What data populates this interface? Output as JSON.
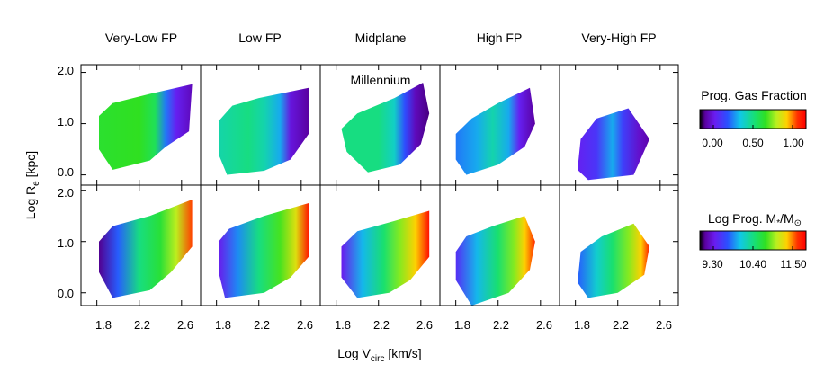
{
  "chart_data": {
    "type": "heatmap",
    "panel_titles": [
      "Very-Low FP",
      "Low FP",
      "Midplane",
      "High FP",
      "Very-High FP"
    ],
    "annotation": "Millennium",
    "xlabel_main": "Log V",
    "xlabel_sub": "circ",
    "xlabel_units": " [km/s]",
    "ylabel_main": "Log R",
    "ylabel_sub": "e",
    "ylabel_units": " [kpc]",
    "x_ticks": [
      1.8,
      2.2,
      2.6
    ],
    "x_tick_labels": [
      "1.8",
      "2.2",
      "2.6"
    ],
    "xlim": [
      1.65,
      2.78
    ],
    "row1_y_ticks": [
      0.0,
      1.0,
      2.0
    ],
    "row1_y_tick_labels": [
      "0.0",
      "1.0",
      "2.0"
    ],
    "row2_y_ticks": [
      0.0,
      1.0,
      2.0
    ],
    "row2_y_tick_labels": [
      "0.0",
      "1.0",
      "2.0"
    ],
    "ylim_row1": [
      -0.2,
      2.15
    ],
    "ylim_row2": [
      -0.25,
      2.1
    ],
    "colorbars": [
      {
        "title": "Prog. Gas Fraction",
        "tick_labels": [
          "0.00",
          "0.50",
          "1.00"
        ],
        "min": 0.0,
        "max": 1.0
      },
      {
        "title_main": "Log Prog. M",
        "title_sub": "*",
        "title_mid": "/M",
        "title_sun": "⊙",
        "tick_labels": [
          "9.30",
          "10.40",
          "11.50"
        ],
        "min": 9.3,
        "max": 11.5
      }
    ],
    "rows": [
      {
        "quantity": "Prog. Gas Fraction",
        "panels": [
          {
            "polygon": [
              [
                1.95,
                0.1
              ],
              [
                2.3,
                0.28
              ],
              [
                2.45,
                0.55
              ],
              [
                2.67,
                0.85
              ],
              [
                2.7,
                1.77
              ],
              [
                2.3,
                1.58
              ],
              [
                1.95,
                1.4
              ],
              [
                1.82,
                1.15
              ],
              [
                1.82,
                0.5
              ]
            ],
            "stops": [
              [
                1.8,
                0.6
              ],
              [
                2.2,
                0.62
              ],
              [
                2.35,
                0.55
              ],
              [
                2.45,
                0.3
              ],
              [
                2.55,
                0.15
              ],
              [
                2.7,
                0.08
              ]
            ]
          },
          {
            "polygon": [
              [
                1.9,
                0.0
              ],
              [
                2.25,
                0.08
              ],
              [
                2.5,
                0.3
              ],
              [
                2.67,
                0.8
              ],
              [
                2.67,
                1.7
              ],
              [
                2.2,
                1.5
              ],
              [
                1.95,
                1.35
              ],
              [
                1.82,
                1.05
              ],
              [
                1.82,
                0.4
              ]
            ],
            "stops": [
              [
                1.8,
                0.45
              ],
              [
                2.1,
                0.5
              ],
              [
                2.25,
                0.45
              ],
              [
                2.4,
                0.35
              ],
              [
                2.5,
                0.12
              ],
              [
                2.67,
                0.05
              ]
            ]
          },
          {
            "polygon": [
              [
                2.1,
                0.05
              ],
              [
                2.4,
                0.2
              ],
              [
                2.6,
                0.6
              ],
              [
                2.68,
                1.2
              ],
              [
                2.62,
                1.8
              ],
              [
                2.35,
                1.5
              ],
              [
                2.0,
                1.2
              ],
              [
                1.85,
                0.9
              ],
              [
                1.9,
                0.45
              ]
            ],
            "stops": [
              [
                1.85,
                0.5
              ],
              [
                2.2,
                0.5
              ],
              [
                2.35,
                0.42
              ],
              [
                2.45,
                0.25
              ],
              [
                2.55,
                0.08
              ],
              [
                2.68,
                0.04
              ]
            ]
          },
          {
            "polygon": [
              [
                1.9,
                0.0
              ],
              [
                2.2,
                0.2
              ],
              [
                2.45,
                0.55
              ],
              [
                2.55,
                1.0
              ],
              [
                2.5,
                1.7
              ],
              [
                2.2,
                1.4
              ],
              [
                1.95,
                1.1
              ],
              [
                1.8,
                0.8
              ],
              [
                1.8,
                0.3
              ]
            ],
            "stops": [
              [
                1.8,
                0.3
              ],
              [
                2.0,
                0.35
              ],
              [
                2.15,
                0.45
              ],
              [
                2.3,
                0.35
              ],
              [
                2.4,
                0.15
              ],
              [
                2.55,
                0.05
              ]
            ]
          },
          {
            "polygon": [
              [
                1.92,
                -0.1
              ],
              [
                2.35,
                0.0
              ],
              [
                2.5,
                0.7
              ],
              [
                2.3,
                1.3
              ],
              [
                2.0,
                1.1
              ],
              [
                1.85,
                0.7
              ],
              [
                1.82,
                0.1
              ]
            ],
            "stops": [
              [
                1.82,
                0.15
              ],
              [
                2.0,
                0.2
              ],
              [
                2.15,
                0.35
              ],
              [
                2.25,
                0.22
              ],
              [
                2.4,
                0.1
              ],
              [
                2.5,
                0.06
              ]
            ]
          }
        ]
      },
      {
        "quantity": "Log Prog. Stellar Mass",
        "panels": [
          {
            "polygon": [
              [
                1.95,
                -0.1
              ],
              [
                2.3,
                0.05
              ],
              [
                2.5,
                0.4
              ],
              [
                2.7,
                0.9
              ],
              [
                2.7,
                1.82
              ],
              [
                2.3,
                1.5
              ],
              [
                1.95,
                1.3
              ],
              [
                1.82,
                1.0
              ],
              [
                1.82,
                0.4
              ]
            ],
            "stops": [
              [
                1.82,
                9.4
              ],
              [
                2.0,
                9.9
              ],
              [
                2.2,
                10.4
              ],
              [
                2.4,
                10.6
              ],
              [
                2.55,
                10.9
              ],
              [
                2.7,
                11.3
              ]
            ]
          },
          {
            "polygon": [
              [
                1.88,
                -0.1
              ],
              [
                2.25,
                0.0
              ],
              [
                2.5,
                0.3
              ],
              [
                2.67,
                0.7
              ],
              [
                2.67,
                1.75
              ],
              [
                2.25,
                1.5
              ],
              [
                1.92,
                1.25
              ],
              [
                1.82,
                1.0
              ],
              [
                1.82,
                0.4
              ]
            ],
            "stops": [
              [
                1.82,
                9.6
              ],
              [
                2.0,
                10.0
              ],
              [
                2.2,
                10.4
              ],
              [
                2.4,
                10.7
              ],
              [
                2.55,
                11.0
              ],
              [
                2.67,
                11.4
              ]
            ]
          },
          {
            "polygon": [
              [
                2.0,
                -0.1
              ],
              [
                2.3,
                0.0
              ],
              [
                2.5,
                0.25
              ],
              [
                2.68,
                0.7
              ],
              [
                2.68,
                1.6
              ],
              [
                2.35,
                1.4
              ],
              [
                2.0,
                1.2
              ],
              [
                1.85,
                0.9
              ],
              [
                1.85,
                0.3
              ]
            ],
            "stops": [
              [
                1.85,
                9.6
              ],
              [
                2.05,
                10.1
              ],
              [
                2.25,
                10.45
              ],
              [
                2.4,
                10.8
              ],
              [
                2.55,
                11.1
              ],
              [
                2.68,
                11.45
              ]
            ]
          },
          {
            "polygon": [
              [
                1.95,
                -0.25
              ],
              [
                2.3,
                0.0
              ],
              [
                2.5,
                0.45
              ],
              [
                2.55,
                1.0
              ],
              [
                2.45,
                1.5
              ],
              [
                2.15,
                1.3
              ],
              [
                1.9,
                1.1
              ],
              [
                1.8,
                0.8
              ],
              [
                1.8,
                0.25
              ]
            ],
            "stops": [
              [
                1.8,
                9.7
              ],
              [
                2.0,
                10.1
              ],
              [
                2.2,
                10.45
              ],
              [
                2.35,
                10.8
              ],
              [
                2.45,
                11.1
              ],
              [
                2.55,
                11.35
              ]
            ]
          },
          {
            "polygon": [
              [
                1.92,
                -0.1
              ],
              [
                2.2,
                0.0
              ],
              [
                2.45,
                0.35
              ],
              [
                2.5,
                0.9
              ],
              [
                2.35,
                1.35
              ],
              [
                2.05,
                1.1
              ],
              [
                1.85,
                0.8
              ],
              [
                1.82,
                0.2
              ]
            ],
            "stops": [
              [
                1.82,
                9.9
              ],
              [
                2.0,
                10.2
              ],
              [
                2.15,
                10.45
              ],
              [
                2.3,
                10.8
              ],
              [
                2.42,
                11.1
              ],
              [
                2.5,
                11.4
              ]
            ]
          }
        ]
      }
    ]
  }
}
